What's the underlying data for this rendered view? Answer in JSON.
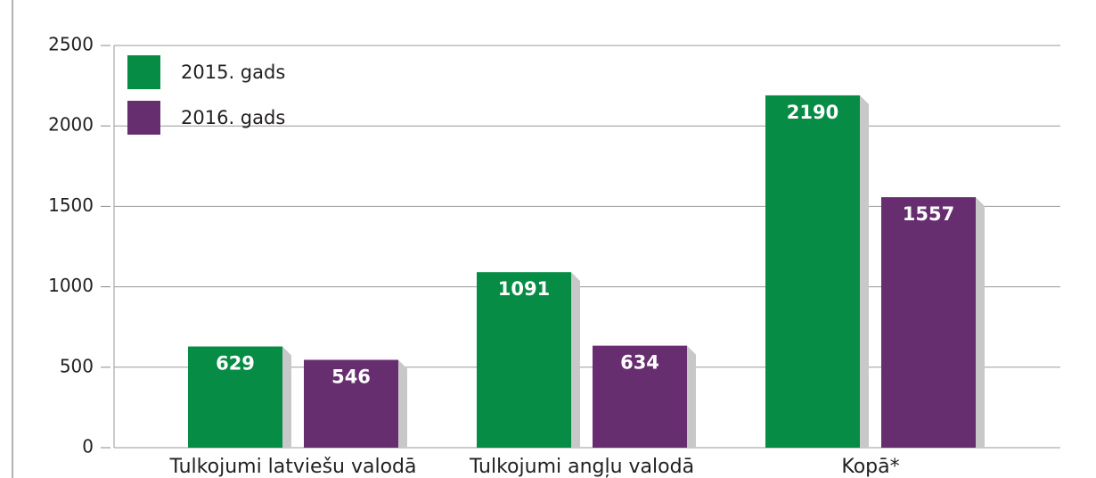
{
  "chart_data": {
    "type": "bar",
    "categories": [
      "Tulkojumi latviešu valodā",
      "Tulkojumi angļu valodā",
      "Kopā*"
    ],
    "series": [
      {
        "name": "2015. gads",
        "color": "#078c45",
        "values": [
          629,
          1091,
          2190
        ]
      },
      {
        "name": "2016. gads",
        "color": "#662d6f",
        "values": [
          546,
          634,
          1557
        ]
      }
    ],
    "ylim": [
      0,
      2500
    ],
    "yticks": [
      0,
      500,
      1000,
      1500,
      2000,
      2500
    ],
    "grid": true,
    "legend": "upper left"
  }
}
